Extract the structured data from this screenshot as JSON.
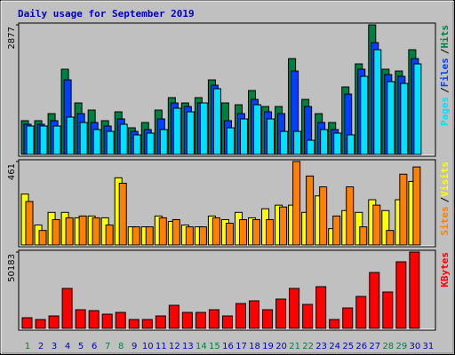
{
  "chart_data": [
    {
      "type": "bar",
      "title": "Daily usage for September 2019",
      "ylim": [
        0,
        2877
      ],
      "yticks": [
        2877
      ],
      "legend": "right",
      "legend_separator": "/",
      "series": [
        {
          "name": "Hits",
          "color": "#008040",
          "values": [
            749,
            749,
            906,
            1892,
            1143,
            985,
            749,
            946,
            591,
            709,
            985,
            1261,
            1143,
            1261,
            1655,
            1143,
            1103,
            1419,
            1064,
            1064,
            2128,
            1222,
            906,
            709,
            1498,
            2010,
            2877,
            1892,
            1852,
            2325,
            null
          ]
        },
        {
          "name": "Files",
          "color": "#0040ff",
          "values": [
            670,
            670,
            749,
            1655,
            906,
            709,
            631,
            788,
            512,
            552,
            788,
            1143,
            1064,
            1143,
            1537,
            749,
            906,
            1222,
            946,
            906,
            1852,
            1064,
            709,
            552,
            1340,
            1892,
            2483,
            1773,
            1734,
            2128,
            null
          ]
        },
        {
          "name": "Pages",
          "color": "#00e0ff",
          "values": [
            631,
            631,
            631,
            828,
            709,
            552,
            512,
            670,
            434,
            473,
            552,
            1025,
            946,
            1143,
            1458,
            591,
            788,
            1103,
            788,
            512,
            512,
            315,
            552,
            473,
            434,
            1734,
            2325,
            1616,
            1576,
            2010,
            null
          ]
        }
      ]
    },
    {
      "type": "bar",
      "ylim": [
        0,
        461
      ],
      "yticks": [
        461
      ],
      "legend": "right",
      "legend_separator": "/",
      "series": [
        {
          "name": "Visits",
          "color": "#ffff00",
          "values": [
            281,
            110,
            180,
            180,
            150,
            160,
            150,
            371,
            100,
            100,
            160,
            130,
            110,
            100,
            160,
            140,
            180,
            150,
            200,
            220,
            220,
            180,
            271,
            90,
            190,
            180,
            250,
            190,
            250,
            351,
            null
          ]
        },
        {
          "name": "Sites",
          "color": "#ff8000",
          "values": [
            240,
            80,
            140,
            150,
            160,
            150,
            110,
            341,
            100,
            100,
            150,
            140,
            100,
            100,
            150,
            120,
            140,
            140,
            140,
            210,
            461,
            381,
            321,
            160,
            321,
            100,
            220,
            80,
            391,
            431,
            null
          ]
        }
      ]
    },
    {
      "type": "bar",
      "ylim": [
        0,
        50183
      ],
      "yticks": [
        50183
      ],
      "legend": "right",
      "categories": [
        "1",
        "2",
        "3",
        "4",
        "5",
        "6",
        "7",
        "8",
        "9",
        "10",
        "11",
        "12",
        "13",
        "14",
        "15",
        "16",
        "17",
        "18",
        "19",
        "20",
        "21",
        "22",
        "23",
        "24",
        "25",
        "26",
        "27",
        "28",
        "29",
        "30",
        "31"
      ],
      "category_colors": [
        "#008040",
        "#0000c0",
        "#0000c0",
        "#0000c0",
        "#0000c0",
        "#0000c0",
        "#008040",
        "#008040",
        "#0000c0",
        "#0000c0",
        "#0000c0",
        "#0000c0",
        "#0000c0",
        "#008040",
        "#008040",
        "#0000c0",
        "#0000c0",
        "#0000c0",
        "#0000c0",
        "#0000c0",
        "#008040",
        "#008040",
        "#0000c0",
        "#0000c0",
        "#0000c0",
        "#0000c0",
        "#0000c0",
        "#008040",
        "#008040",
        "#0000c0",
        "#0000c0"
      ],
      "series": [
        {
          "name": "KBytes",
          "color": "#ff0000",
          "values": [
            7002,
            5835,
            8169,
            26258,
            12254,
            11670,
            9336,
            10503,
            5835,
            5835,
            8169,
            15171,
            10503,
            10503,
            12254,
            8169,
            16338,
            18089,
            12254,
            19256,
            26258,
            15755,
            27425,
            5835,
            13421,
            21006,
            36761,
            23924,
            43763,
            50183,
            null
          ]
        }
      ]
    }
  ]
}
